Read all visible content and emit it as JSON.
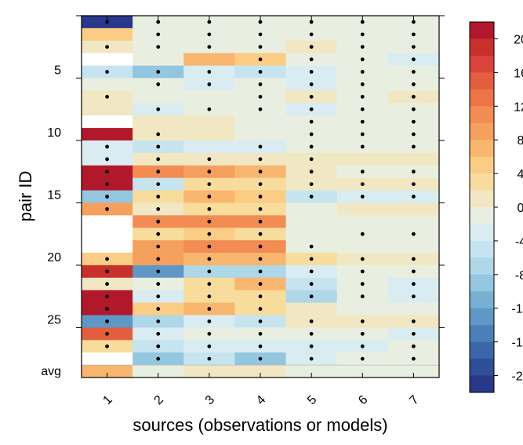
{
  "chart_data": {
    "type": "heatmap",
    "title": "",
    "xlabel": "sources (observations or models)",
    "ylabel": "pair ID",
    "x_categories": [
      "1",
      "2",
      "3",
      "4",
      "5",
      "6",
      "7"
    ],
    "rows": [
      "1",
      "2",
      "3",
      "4",
      "5",
      "6",
      "7",
      "8",
      "9",
      "10",
      "11",
      "12",
      "13",
      "14",
      "15",
      "16",
      "17",
      "18",
      "19",
      "20",
      "21",
      "22",
      "23",
      "24",
      "25",
      "26",
      "27",
      "28",
      "avg"
    ],
    "y_tick_labels": [
      {
        "label": "5",
        "row": 5
      },
      {
        "label": "10",
        "row": 10
      },
      {
        "label": "15",
        "row": 15
      },
      {
        "label": "20",
        "row": 20
      },
      {
        "label": "25",
        "row": 25
      },
      {
        "label": "avg",
        "row": 29
      }
    ],
    "colorbar": {
      "labels": [
        "20",
        "16",
        "12",
        "8",
        "4",
        "0",
        "-4",
        "-8",
        "-12",
        "-16",
        "-20"
      ],
      "bins": [
        {
          "min": 20,
          "max": 22,
          "color": "#b2182b"
        },
        {
          "min": 18,
          "max": 20,
          "color": "#c9302c"
        },
        {
          "min": 16,
          "max": 18,
          "color": "#d8443a"
        },
        {
          "min": 14,
          "max": 16,
          "color": "#e35d3f"
        },
        {
          "min": 12,
          "max": 14,
          "color": "#ec7446"
        },
        {
          "min": 10,
          "max": 12,
          "color": "#f28c52"
        },
        {
          "min": 8,
          "max": 10,
          "color": "#f6a05e"
        },
        {
          "min": 6,
          "max": 8,
          "color": "#f9b66e"
        },
        {
          "min": 4,
          "max": 6,
          "color": "#fbcd84"
        },
        {
          "min": 2,
          "max": 4,
          "color": "#f7dc9c"
        },
        {
          "min": 0,
          "max": 2,
          "color": "#f1e7c3"
        },
        {
          "min": -2,
          "max": 0,
          "color": "#e9efe0"
        },
        {
          "min": -4,
          "max": -2,
          "color": "#d9ecf2"
        },
        {
          "min": -6,
          "max": -4,
          "color": "#c6e4ef"
        },
        {
          "min": -8,
          "max": -6,
          "color": "#aed7e7"
        },
        {
          "min": -10,
          "max": -8,
          "color": "#93c6df"
        },
        {
          "min": -12,
          "max": -10,
          "color": "#78b0d3"
        },
        {
          "min": -14,
          "max": -12,
          "color": "#5f98c6"
        },
        {
          "min": -16,
          "max": -14,
          "color": "#4a7fb7"
        },
        {
          "min": -18,
          "max": -16,
          "color": "#3b66a8"
        },
        {
          "min": -20,
          "max": -18,
          "color": "#2f4e98"
        },
        {
          "min": -22,
          "max": -20,
          "color": "#28388a"
        }
      ]
    },
    "values": [
      [
        -21,
        -1,
        -1,
        -1,
        -1,
        -1,
        -1
      ],
      [
        5,
        -1,
        -1,
        -1,
        -1,
        -1,
        -1
      ],
      [
        2,
        -1,
        -1,
        -1,
        1,
        -1,
        -1
      ],
      [
        null,
        -1,
        7,
        5,
        -1,
        -1,
        -3
      ],
      [
        -5,
        -9,
        -3,
        -5,
        -3,
        -1,
        -1
      ],
      [
        -1,
        -1,
        -3,
        -1,
        -3,
        -1,
        -1
      ],
      [
        1,
        -1,
        -1,
        -1,
        1,
        -1,
        1
      ],
      [
        1,
        -3,
        -1,
        -1,
        -3,
        -1,
        -1
      ],
      [
        null,
        1,
        1,
        -1,
        -1,
        -1,
        -1
      ],
      [
        21,
        1,
        1,
        -1,
        -1,
        -1,
        -1
      ],
      [
        -3,
        -5,
        -3,
        -3,
        -1,
        -1,
        -1
      ],
      [
        -3,
        1,
        1,
        1,
        1,
        1,
        1
      ],
      [
        21,
        11,
        9,
        7,
        1,
        -1,
        -1
      ],
      [
        21,
        -5,
        3,
        3,
        1,
        1,
        1
      ],
      [
        -9,
        3,
        7,
        5,
        -5,
        -3,
        -3
      ],
      [
        9,
        1,
        3,
        3,
        -1,
        1,
        1
      ],
      [
        null,
        11,
        11,
        11,
        -1,
        -1,
        -1
      ],
      [
        null,
        3,
        5,
        3,
        -1,
        -1,
        -1
      ],
      [
        null,
        9,
        11,
        11,
        -1,
        -1,
        -1
      ],
      [
        5,
        9,
        7,
        7,
        3,
        1,
        1
      ],
      [
        19,
        -13,
        -7,
        -7,
        -3,
        -1,
        -1
      ],
      [
        1,
        -1,
        3,
        7,
        -5,
        -1,
        -3
      ],
      [
        21,
        -3,
        3,
        3,
        -7,
        -1,
        -3
      ],
      [
        21,
        5,
        7,
        3,
        1,
        -1,
        -1
      ],
      [
        -13,
        -7,
        -3,
        -5,
        1,
        1,
        1
      ],
      [
        15,
        -3,
        -1,
        -1,
        -1,
        -1,
        -3
      ],
      [
        3,
        -5,
        -3,
        -3,
        -3,
        -3,
        -1
      ],
      [
        null,
        -9,
        -5,
        -9,
        -3,
        -1,
        -1
      ],
      [
        7,
        -1,
        1,
        1,
        -1,
        -1,
        -1
      ]
    ],
    "stippled": [
      [
        1,
        1,
        1,
        1,
        1,
        1,
        1
      ],
      [
        0,
        1,
        1,
        1,
        1,
        1,
        1
      ],
      [
        1,
        1,
        1,
        1,
        1,
        1,
        1
      ],
      [
        0,
        0,
        0,
        1,
        1,
        1,
        1
      ],
      [
        1,
        1,
        1,
        1,
        1,
        1,
        1
      ],
      [
        0,
        1,
        1,
        1,
        1,
        1,
        1
      ],
      [
        1,
        0,
        0,
        1,
        1,
        1,
        1
      ],
      [
        0,
        1,
        1,
        1,
        1,
        1,
        1
      ],
      [
        0,
        0,
        0,
        0,
        1,
        1,
        1
      ],
      [
        0,
        1,
        0,
        0,
        1,
        1,
        1
      ],
      [
        1,
        1,
        0,
        1,
        1,
        1,
        1
      ],
      [
        1,
        1,
        1,
        1,
        1,
        0,
        0
      ],
      [
        1,
        1,
        1,
        1,
        1,
        1,
        1
      ],
      [
        1,
        1,
        1,
        1,
        1,
        1,
        1
      ],
      [
        1,
        1,
        1,
        1,
        1,
        1,
        1
      ],
      [
        1,
        1,
        1,
        1,
        0,
        0,
        0
      ],
      [
        0,
        1,
        1,
        1,
        0,
        0,
        0
      ],
      [
        0,
        1,
        1,
        1,
        0,
        1,
        1
      ],
      [
        0,
        1,
        1,
        1,
        1,
        0,
        0
      ],
      [
        1,
        1,
        1,
        1,
        1,
        1,
        1
      ],
      [
        1,
        1,
        1,
        1,
        1,
        1,
        1
      ],
      [
        1,
        1,
        1,
        1,
        1,
        1,
        1
      ],
      [
        1,
        1,
        1,
        1,
        1,
        1,
        1
      ],
      [
        1,
        1,
        1,
        1,
        0,
        0,
        0
      ],
      [
        1,
        1,
        1,
        1,
        1,
        1,
        1
      ],
      [
        1,
        1,
        1,
        1,
        1,
        1,
        1
      ],
      [
        1,
        1,
        1,
        1,
        1,
        1,
        1
      ],
      [
        0,
        1,
        1,
        1,
        1,
        1,
        1
      ],
      [
        0,
        0,
        0,
        0,
        0,
        0,
        0
      ]
    ]
  }
}
